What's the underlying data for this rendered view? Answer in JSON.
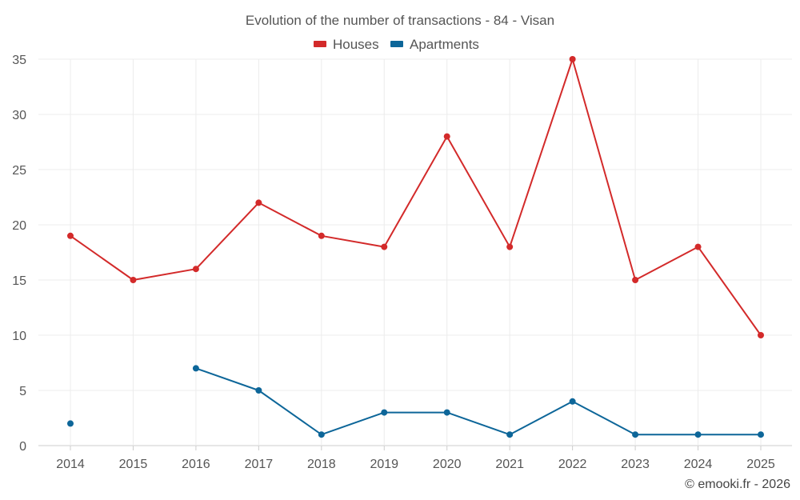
{
  "chart_data": {
    "type": "line",
    "title": "Evolution of the number of transactions - 84 - Visan",
    "categories": [
      "2014",
      "2015",
      "2016",
      "2017",
      "2018",
      "2019",
      "2020",
      "2021",
      "2022",
      "2023",
      "2024",
      "2025"
    ],
    "series": [
      {
        "name": "Houses",
        "color": "#d32a2a",
        "values": [
          19,
          15,
          16,
          22,
          19,
          18,
          28,
          18,
          35,
          15,
          18,
          10
        ]
      },
      {
        "name": "Apartments",
        "color": "#0d6699",
        "values": [
          2,
          null,
          7,
          5,
          1,
          3,
          3,
          1,
          4,
          1,
          1,
          1
        ]
      }
    ],
    "ylim": [
      0,
      35
    ],
    "yticks": [
      0,
      5,
      10,
      15,
      20,
      25,
      30,
      35
    ],
    "legend_position": "top-center",
    "grid": true,
    "xlabel": "",
    "ylabel": ""
  },
  "credit": "© emooki.fr - 2026"
}
